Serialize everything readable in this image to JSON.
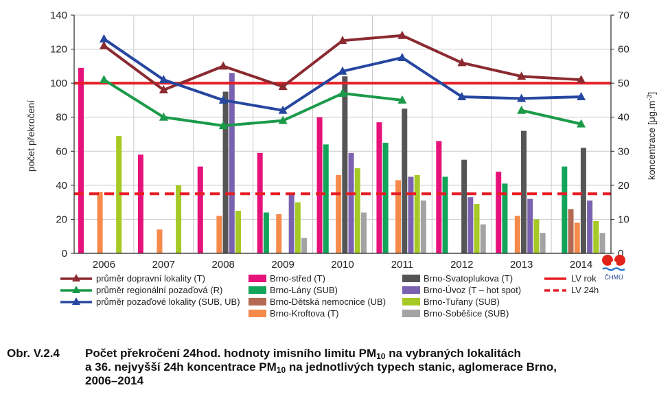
{
  "chart_data": {
    "type": "bar+line",
    "categories": [
      "2006",
      "2007",
      "2008",
      "2009",
      "2010",
      "2011",
      "2012",
      "2013",
      "2014"
    ],
    "y_left": {
      "label": "počet překročení",
      "range": [
        0,
        140
      ],
      "ticks": [
        0,
        20,
        40,
        60,
        80,
        100,
        120,
        140
      ]
    },
    "y_right": {
      "label": "koncentrace [μg.m⁻³]",
      "label_pre": "koncentrace [μg.m",
      "label_sup": "-3",
      "label_post": "]",
      "range": [
        0,
        70
      ],
      "ticks": [
        0,
        10,
        20,
        30,
        40,
        50,
        60,
        70
      ]
    },
    "bar_series": [
      {
        "name": "Brno-střed (T)",
        "color": "#e6127a",
        "values": [
          109,
          58,
          51,
          59,
          80,
          77,
          66,
          48,
          null
        ]
      },
      {
        "name": "Brno-Lány (SUB)",
        "color": "#12a55a",
        "values": [
          null,
          null,
          null,
          24,
          64,
          65,
          45,
          41,
          51
        ]
      },
      {
        "name": "Brno-Dětská nemocnice (UB)",
        "color": "#b46a52",
        "values": [
          null,
          null,
          null,
          null,
          null,
          null,
          null,
          null,
          26
        ]
      },
      {
        "name": "Brno-Kroftova (T)",
        "color": "#f58a4b",
        "values": [
          36,
          14,
          22,
          23,
          46,
          43,
          null,
          22,
          18
        ]
      },
      {
        "name": "Brno-Svatoplukova (T)",
        "color": "#555555",
        "values": [
          null,
          null,
          95,
          null,
          104,
          85,
          55,
          72,
          62
        ]
      },
      {
        "name": "Brno-Úvoz (T – hot spot)",
        "color": "#7b62b0",
        "values": [
          null,
          null,
          106,
          35,
          59,
          45,
          33,
          32,
          31
        ]
      },
      {
        "name": "Brno-Tuřany (SUB)",
        "color": "#a6c926",
        "values": [
          69,
          40,
          25,
          30,
          50,
          46,
          29,
          20,
          19
        ]
      },
      {
        "name": "Brno-Soběšice (SUB)",
        "color": "#a3a3a3",
        "values": [
          null,
          null,
          null,
          9,
          24,
          31,
          17,
          12,
          12
        ]
      }
    ],
    "line_series": [
      {
        "name": "průměr dopravní lokality (T)",
        "color": "#8b2a30",
        "marker": "triangle",
        "values": [
          61,
          48,
          55,
          49,
          62.5,
          64,
          56,
          52,
          51
        ]
      },
      {
        "name": "průměr regionální pozaďová (R)",
        "color": "#1b9a4a",
        "marker": "triangle",
        "values": [
          51,
          40,
          37.5,
          39,
          47,
          45,
          null,
          42,
          38
        ]
      },
      {
        "name": "průměr pozaďové lokality (SUB, UB)",
        "color": "#2646a0",
        "marker": "triangle",
        "values": [
          63,
          51,
          45,
          42,
          53.5,
          57.5,
          46,
          45.5,
          46
        ]
      }
    ],
    "reference_lines": [
      {
        "name": "LV rok",
        "color": "#e61e25",
        "style": "solid",
        "value_right": 50
      },
      {
        "name": "LV 24h",
        "color": "#e61e25",
        "style": "dashed",
        "value_right": 17.5
      }
    ],
    "legend_placement": "bottom"
  },
  "logo": {
    "text": "ČHMÚ"
  },
  "caption": {
    "number": "Obr. V.2.4",
    "line1_a": "Počet překročení 24hod. hodnoty imisního limitu PM",
    "line1_sub": "10",
    "line1_b": " na vybraných lokalitách",
    "line2_a": "a 36. nejvyšší 24h koncentrace PM",
    "line2_sub": "10",
    "line2_b": " na jednotlivých typech stanic, aglomerace Brno,",
    "line3": "2006–2014"
  }
}
